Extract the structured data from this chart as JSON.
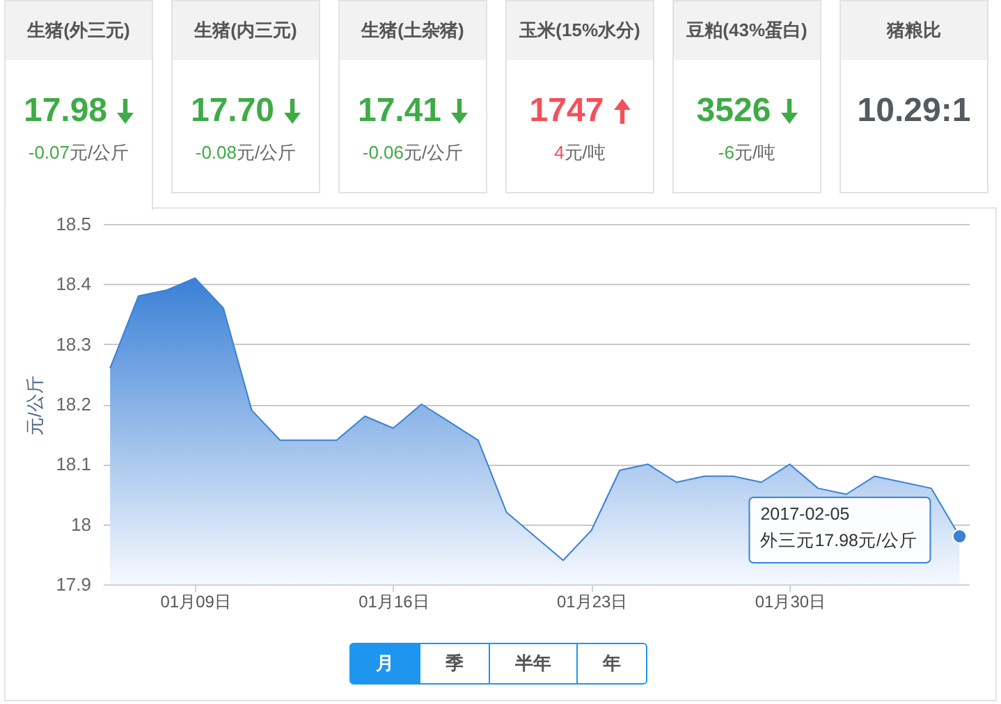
{
  "chart_data": [
    {
      "type": "other",
      "title": "生猪(外三元)",
      "values": [
        17.98,
        -0.07
      ],
      "data_labels": true,
      "annotations": [
        "元/公斤"
      ],
      "colors": [
        "#3fab46",
        "#3fab46"
      ]
    },
    {
      "type": "other",
      "title": "生猪(内三元)",
      "values": [
        17.7,
        -0.08
      ],
      "value_labels": [
        "17.70",
        "-0.08"
      ],
      "annotations": [
        "元/公斤"
      ],
      "colors": [
        "#3fab46",
        "#3fab46"
      ]
    },
    {
      "type": "other",
      "title": "生猪(土杂猪)",
      "values": [
        17.41,
        -0.06
      ],
      "data_labels": true,
      "annotations": [
        "元/公斤"
      ],
      "colors": [
        "#3fab46",
        "#3fab46"
      ]
    },
    {
      "type": "other",
      "title": "玉米(15%水分)",
      "values": [
        1747,
        4
      ],
      "data_labels": true,
      "annotations": [
        "元/吨"
      ],
      "colors": [
        "#f4505a",
        "#f4505a"
      ]
    },
    {
      "type": "other",
      "title": "豆粕(43%蛋白)",
      "values": [
        3526,
        -6
      ],
      "data_labels": true,
      "annotations": [
        "元/吨"
      ],
      "colors": [
        "#3fab46",
        "#3fab46"
      ]
    },
    {
      "type": "other",
      "title": "猪粮比",
      "values": [
        10.29
      ],
      "value_labels": [
        "10.29:1"
      ]
    },
    {
      "type": "area",
      "ylabel": "元/公斤",
      "x": [
        "2017-01-06",
        "2017-01-07",
        "2017-01-08",
        "2017-01-09",
        "2017-01-10",
        "2017-01-11",
        "2017-01-12",
        "2017-01-13",
        "2017-01-14",
        "2017-01-15",
        "2017-01-16",
        "2017-01-17",
        "2017-01-18",
        "2017-01-19",
        "2017-01-20",
        "2017-01-21",
        "2017-01-22",
        "2017-01-23",
        "2017-01-24",
        "2017-01-25",
        "2017-01-26",
        "2017-01-27",
        "2017-01-28",
        "2017-01-29",
        "2017-01-30",
        "2017-01-31",
        "2017-02-01",
        "2017-02-02",
        "2017-02-03",
        "2017-02-04",
        "2017-02-05"
      ],
      "series": [
        {
          "color": "#3a80d6",
          "values": [
            18.26,
            18.38,
            18.39,
            18.41,
            18.36,
            18.19,
            18.14,
            18.14,
            18.14,
            18.18,
            18.16,
            18.2,
            18.17,
            18.14,
            18.02,
            17.98,
            17.94,
            17.99,
            18.09,
            18.1,
            18.07,
            18.08,
            18.08,
            18.07,
            18.1,
            18.06,
            18.05,
            18.08,
            18.07,
            18.06,
            17.98
          ]
        }
      ],
      "xlim": [
        "2017-01-05T18:00",
        "2017-02-05T08:00"
      ],
      "xticks": [
        {
          "value": "2017-01-09",
          "label": "01月09日"
        },
        {
          "value": "2017-01-16",
          "label": "01月16日"
        },
        {
          "value": "2017-01-23",
          "label": "01月23日"
        },
        {
          "value": "2017-01-30",
          "label": "01月30日"
        }
      ],
      "ylim": [
        17.9,
        18.5
      ],
      "yticks": [
        17.9,
        18,
        18.1,
        18.2,
        18.3,
        18.4,
        18.5
      ],
      "grid": "y",
      "annotations": [
        {
          "text": "2017-02-05\n外三元17.98元/公斤",
          "x": "2017-02-05",
          "y": 17.98
        },
        "月",
        "季",
        "半年",
        "年"
      ]
    }
  ]
}
